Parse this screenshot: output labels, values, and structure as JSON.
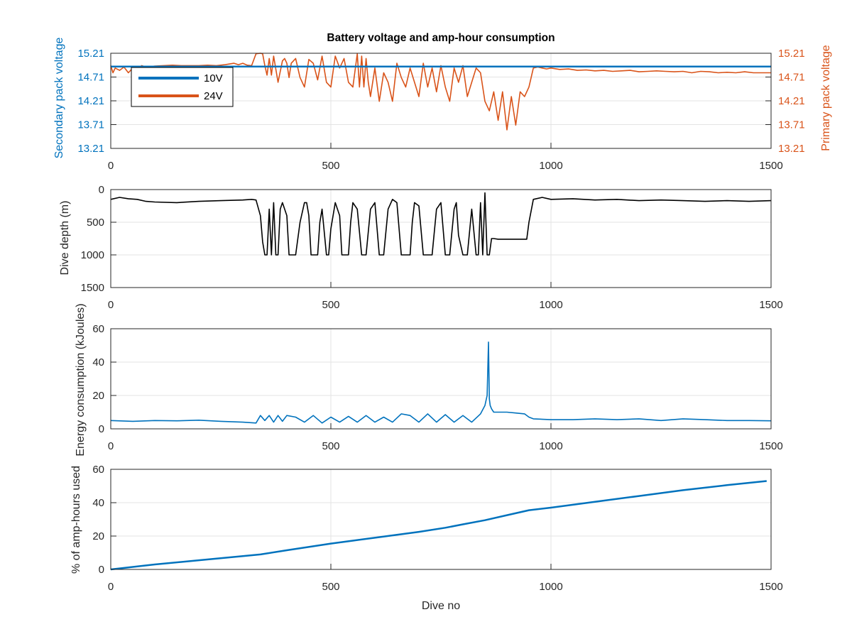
{
  "chart_data": [
    {
      "type": "line",
      "title": "Battery voltage and amp-hour consumption",
      "xlabel": "",
      "ylabel_left": "Secondary pack voltage",
      "ylabel_right": "Primary pack voltage",
      "xlim": [
        0,
        1500
      ],
      "ylim": [
        13.21,
        15.21
      ],
      "x_ticks": [
        "0",
        "500",
        "1000",
        "1500"
      ],
      "y_ticks": [
        "13.21",
        "13.71",
        "14.21",
        "14.71",
        "15.21"
      ],
      "left_axis_color": "#0072BD",
      "right_axis_color": "#D95319",
      "grid": true,
      "legend_position": "top-left",
      "series": [
        {
          "name": "10V",
          "color": "#0072BD",
          "x": [
            0,
            1500
          ],
          "y": [
            14.93,
            14.93
          ]
        },
        {
          "name": "24V",
          "color": "#D95319",
          "x": [
            0,
            5,
            10,
            20,
            30,
            40,
            50,
            60,
            70,
            80,
            90,
            100,
            120,
            140,
            160,
            180,
            200,
            220,
            240,
            260,
            280,
            290,
            300,
            310,
            320,
            330,
            340,
            345,
            350,
            355,
            360,
            365,
            370,
            380,
            390,
            395,
            400,
            405,
            410,
            420,
            430,
            440,
            450,
            460,
            470,
            480,
            490,
            500,
            510,
            520,
            530,
            540,
            550,
            560,
            565,
            570,
            575,
            580,
            585,
            590,
            600,
            610,
            620,
            630,
            640,
            650,
            660,
            670,
            680,
            690,
            700,
            710,
            720,
            730,
            740,
            750,
            760,
            770,
            780,
            790,
            800,
            810,
            820,
            830,
            840,
            850,
            860,
            870,
            880,
            890,
            900,
            910,
            920,
            930,
            940,
            950,
            960,
            970,
            980,
            990,
            1000,
            1020,
            1040,
            1060,
            1080,
            1100,
            1120,
            1140,
            1160,
            1180,
            1200,
            1220,
            1240,
            1260,
            1280,
            1300,
            1320,
            1340,
            1360,
            1380,
            1400,
            1420,
            1440,
            1460,
            1480,
            1500
          ],
          "y": [
            14.95,
            14.8,
            14.9,
            14.85,
            14.92,
            14.8,
            14.9,
            14.85,
            14.95,
            14.92,
            14.93,
            14.94,
            14.95,
            14.96,
            14.95,
            14.95,
            14.95,
            14.96,
            14.95,
            14.97,
            15.0,
            14.97,
            15.0,
            14.96,
            14.95,
            15.2,
            15.22,
            15.2,
            14.95,
            14.75,
            15.1,
            14.75,
            15.15,
            14.6,
            15.05,
            15.1,
            15.0,
            14.7,
            15.0,
            15.1,
            14.7,
            14.5,
            15.08,
            15.0,
            14.65,
            15.15,
            14.6,
            14.5,
            15.15,
            14.9,
            15.1,
            14.6,
            14.5,
            15.2,
            14.5,
            15.15,
            14.5,
            15.1,
            14.6,
            14.3,
            14.9,
            14.2,
            14.8,
            14.6,
            14.2,
            15.0,
            14.7,
            14.5,
            14.9,
            14.6,
            14.3,
            15.0,
            14.5,
            14.9,
            14.4,
            14.95,
            14.5,
            14.2,
            14.9,
            14.6,
            14.95,
            14.3,
            14.6,
            14.9,
            14.8,
            14.2,
            14.0,
            14.4,
            13.8,
            14.4,
            13.6,
            14.3,
            13.7,
            14.4,
            14.3,
            14.5,
            14.9,
            14.92,
            14.9,
            14.88,
            14.9,
            14.87,
            14.88,
            14.85,
            14.86,
            14.84,
            14.85,
            14.83,
            14.84,
            14.85,
            14.82,
            14.83,
            14.84,
            14.83,
            14.82,
            14.83,
            14.8,
            14.83,
            14.82,
            14.8,
            14.81,
            14.8,
            14.82,
            14.8,
            14.8,
            14.8
          ]
        }
      ]
    },
    {
      "type": "line",
      "title": "",
      "xlabel": "",
      "ylabel": "Dive depth (m)",
      "xlim": [
        0,
        1500
      ],
      "ylim": [
        1500,
        0
      ],
      "x_ticks": [
        "0",
        "500",
        "1000",
        "1500"
      ],
      "y_ticks": [
        "0",
        "500",
        "1000",
        "1500"
      ],
      "grid": true,
      "series": [
        {
          "color": "#000000",
          "x": [
            0,
            20,
            40,
            60,
            80,
            100,
            150,
            200,
            250,
            300,
            320,
            330,
            340,
            345,
            350,
            355,
            360,
            365,
            370,
            375,
            380,
            385,
            390,
            400,
            405,
            410,
            420,
            430,
            440,
            445,
            450,
            455,
            460,
            470,
            475,
            480,
            490,
            495,
            500,
            510,
            520,
            525,
            530,
            540,
            545,
            550,
            560,
            570,
            575,
            580,
            590,
            600,
            605,
            610,
            620,
            630,
            640,
            650,
            655,
            660,
            670,
            680,
            685,
            690,
            700,
            710,
            720,
            725,
            730,
            740,
            750,
            755,
            760,
            770,
            780,
            785,
            790,
            800,
            810,
            820,
            830,
            835,
            840,
            845,
            850,
            855,
            860,
            865,
            870,
            880,
            900,
            920,
            940,
            945,
            950,
            960,
            980,
            1000,
            1050,
            1100,
            1150,
            1200,
            1250,
            1300,
            1350,
            1400,
            1450,
            1500
          ],
          "y": [
            150,
            120,
            140,
            150,
            180,
            190,
            200,
            180,
            170,
            160,
            150,
            160,
            400,
            800,
            1000,
            1000,
            300,
            1000,
            200,
            1000,
            1000,
            300,
            200,
            400,
            1000,
            1000,
            1000,
            500,
            200,
            200,
            400,
            1000,
            1000,
            1000,
            500,
            300,
            1000,
            1000,
            600,
            200,
            400,
            1000,
            1000,
            1000,
            500,
            200,
            300,
            1000,
            1000,
            1000,
            300,
            200,
            600,
            1000,
            1000,
            300,
            150,
            200,
            600,
            1000,
            1000,
            1000,
            500,
            200,
            250,
            1000,
            1000,
            1000,
            1000,
            300,
            200,
            600,
            1000,
            1000,
            300,
            200,
            700,
            1000,
            1000,
            300,
            1000,
            1000,
            200,
            1000,
            50,
            1000,
            1000,
            750,
            750,
            760,
            760,
            760,
            760,
            760,
            500,
            150,
            120,
            150,
            140,
            160,
            150,
            170,
            160,
            170,
            180,
            170,
            180,
            170
          ]
        }
      ]
    },
    {
      "type": "line",
      "title": "",
      "xlabel": "",
      "ylabel": "Energy consumption (kJoules)",
      "xlim": [
        0,
        1500
      ],
      "ylim": [
        0,
        60
      ],
      "x_ticks": [
        "0",
        "500",
        "1000",
        "1500"
      ],
      "y_ticks": [
        "0",
        "20",
        "40",
        "60"
      ],
      "grid": true,
      "series": [
        {
          "color": "#0072BD",
          "x": [
            0,
            50,
            100,
            150,
            200,
            250,
            300,
            330,
            340,
            350,
            360,
            370,
            380,
            390,
            400,
            420,
            440,
            460,
            480,
            500,
            520,
            540,
            560,
            580,
            600,
            620,
            640,
            660,
            680,
            700,
            720,
            740,
            760,
            780,
            800,
            820,
            840,
            850,
            855,
            858,
            860,
            862,
            865,
            870,
            880,
            900,
            920,
            940,
            950,
            960,
            1000,
            1050,
            1100,
            1150,
            1200,
            1250,
            1300,
            1350,
            1400,
            1450,
            1500
          ],
          "y": [
            5,
            4.5,
            5,
            4.8,
            5.2,
            4.5,
            4,
            3.5,
            8,
            5,
            8,
            4,
            8,
            4.5,
            8,
            7,
            4,
            8,
            3.5,
            7,
            4,
            7.5,
            4,
            8,
            4,
            7,
            4,
            9,
            8,
            4,
            9,
            4,
            8.5,
            4,
            8,
            4,
            9,
            14,
            20,
            52,
            18,
            14,
            12,
            10,
            10,
            10,
            9.5,
            9,
            7,
            6,
            5.5,
            5.5,
            6,
            5.5,
            6,
            5,
            6,
            5.5,
            5,
            5,
            4.8
          ]
        }
      ]
    },
    {
      "type": "line",
      "title": "",
      "xlabel": "Dive no",
      "ylabel": "% of amp-hours used",
      "xlim": [
        0,
        1500
      ],
      "ylim": [
        0,
        60
      ],
      "x_ticks": [
        "0",
        "500",
        "1000",
        "1500"
      ],
      "y_ticks": [
        "0",
        "20",
        "40",
        "60"
      ],
      "grid": true,
      "series": [
        {
          "color": "#0072BD",
          "x": [
            0,
            100,
            200,
            300,
            340,
            400,
            500,
            600,
            700,
            760,
            800,
            850,
            900,
            950,
            1000,
            1100,
            1200,
            1300,
            1400,
            1490
          ],
          "y": [
            0,
            3,
            5.5,
            8,
            9,
            11.5,
            15.5,
            19,
            22.5,
            25,
            27,
            29.5,
            32.5,
            35.5,
            37,
            40.5,
            44,
            47.5,
            50.5,
            53
          ]
        }
      ]
    }
  ]
}
